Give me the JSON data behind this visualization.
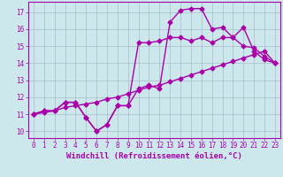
{
  "xlabel": "Windchill (Refroidissement éolien,°C)",
  "bg_color": "#cce8ec",
  "line_color": "#aa00aa",
  "grid_color": "#aabbcc",
  "xlim": [
    -0.5,
    23.5
  ],
  "ylim": [
    9.6,
    17.6
  ],
  "xticks": [
    0,
    1,
    2,
    3,
    4,
    5,
    6,
    7,
    8,
    9,
    10,
    11,
    12,
    13,
    14,
    15,
    16,
    17,
    18,
    19,
    20,
    21,
    22,
    23
  ],
  "yticks": [
    10,
    11,
    12,
    13,
    14,
    15,
    16,
    17
  ],
  "series1_x": [
    0,
    1,
    2,
    3,
    4,
    5,
    6,
    7,
    8,
    9,
    10,
    11,
    12,
    13,
    14,
    15,
    16,
    17,
    18,
    19,
    20,
    21,
    22,
    23
  ],
  "series1_y": [
    11.0,
    11.2,
    11.2,
    11.7,
    11.7,
    10.8,
    10.0,
    10.4,
    11.5,
    11.5,
    12.5,
    12.7,
    12.5,
    16.4,
    17.1,
    17.2,
    17.2,
    16.0,
    16.1,
    15.5,
    16.1,
    14.7,
    14.2,
    14.0
  ],
  "series2_x": [
    0,
    1,
    2,
    3,
    4,
    5,
    6,
    7,
    8,
    9,
    10,
    11,
    12,
    13,
    14,
    15,
    16,
    17,
    18,
    19,
    20,
    21,
    22,
    23
  ],
  "series2_y": [
    11.0,
    11.2,
    11.2,
    11.7,
    11.7,
    10.8,
    10.0,
    10.4,
    11.5,
    11.5,
    15.2,
    15.2,
    15.3,
    15.5,
    15.5,
    15.3,
    15.5,
    15.2,
    15.5,
    15.5,
    15.0,
    14.9,
    14.4,
    14.0
  ],
  "series3_x": [
    0,
    1,
    2,
    3,
    4,
    5,
    6,
    7,
    8,
    9,
    10,
    11,
    12,
    13,
    14,
    15,
    16,
    17,
    18,
    19,
    20,
    21,
    22,
    23
  ],
  "series3_y": [
    11.0,
    11.1,
    11.2,
    11.4,
    11.5,
    11.6,
    11.7,
    11.9,
    12.0,
    12.2,
    12.4,
    12.6,
    12.7,
    12.9,
    13.1,
    13.3,
    13.5,
    13.7,
    13.9,
    14.1,
    14.3,
    14.5,
    14.7,
    14.0
  ],
  "marker": "D",
  "markersize": 2.5,
  "linewidth": 1.0,
  "tick_fontsize": 5.5,
  "label_fontsize": 6.5
}
